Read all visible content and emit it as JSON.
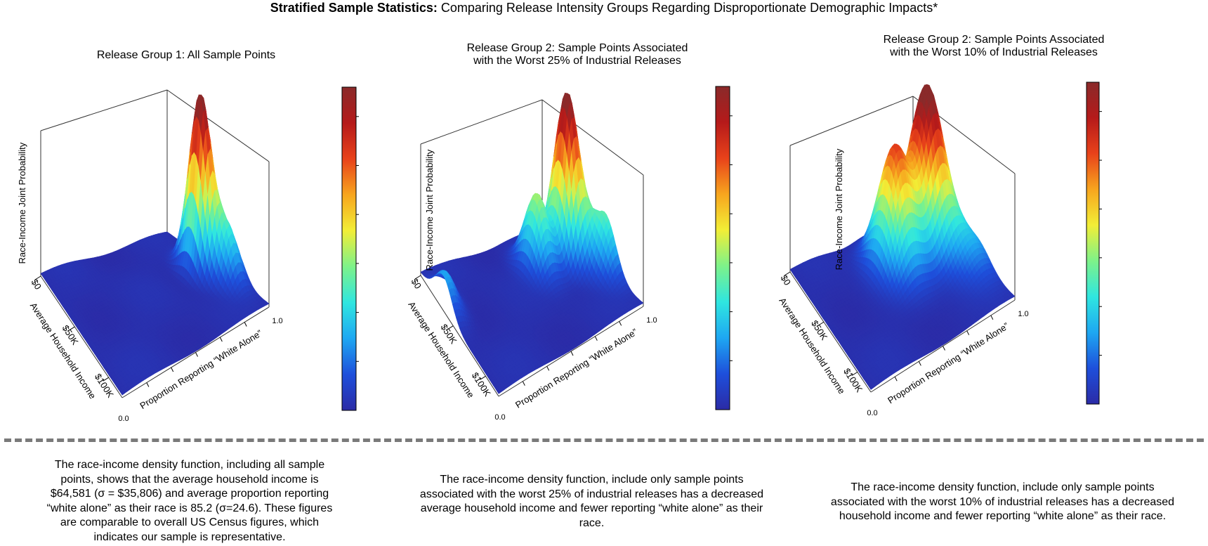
{
  "title": {
    "bold": "Stratified Sample Statistics:",
    "rest": " Comparing Release Intensity Groups Regarding Disproportionate Demographic Impacts*"
  },
  "colors": {
    "colormap": [
      "#2b2ba6",
      "#1e4fdb",
      "#1ea7f2",
      "#2fe6e0",
      "#7df28a",
      "#f2ee36",
      "#f7a51e",
      "#e8421a",
      "#b51a1a",
      "#8a2a2a"
    ],
    "axis": "#000000",
    "divider": "#7a7a7a"
  },
  "chart_data": [
    {
      "type": "surface3d",
      "title_lines": [
        "Release Group 1: All Sample Points"
      ],
      "x_axis_label": "Proportion Reporting “White Alone”",
      "x_ticks": [
        "0.0",
        "1.0"
      ],
      "y_axis_label": "Average Household Income",
      "y_ticks": [
        "$0",
        "$50K",
        "$100K"
      ],
      "z_axis_label": "Race-Income Joint Probability",
      "colorbar": true,
      "peaks": [
        {
          "whiteness": 0.9,
          "income_k": 55,
          "relative_height": 1.0
        },
        {
          "whiteness": 0.95,
          "income_k": 80,
          "relative_height": 0.3
        }
      ]
    },
    {
      "type": "surface3d",
      "title_lines": [
        "Release Group 2: Sample Points Associated",
        "with the Worst 25% of Industrial Releases"
      ],
      "x_axis_label": "Proportion Reporting “White Alone”",
      "x_ticks": [
        "0.0",
        "1.0"
      ],
      "y_axis_label": "Average Household Income",
      "y_ticks": [
        "$0",
        "$50K",
        "$100K"
      ],
      "z_axis_label": "Race-Income Joint Probability",
      "colorbar": true,
      "peaks": [
        {
          "whiteness": 0.9,
          "income_k": 45,
          "relative_height": 1.0
        },
        {
          "whiteness": 0.7,
          "income_k": 40,
          "relative_height": 0.45
        },
        {
          "whiteness": 1.0,
          "income_k": 75,
          "relative_height": 0.35
        },
        {
          "whiteness": 0.02,
          "income_k": 35,
          "relative_height": 0.2
        }
      ]
    },
    {
      "type": "surface3d",
      "title_lines": [
        "Release Group 2: Sample Points Associated",
        "with the Worst 10% of Industrial Releases"
      ],
      "x_axis_label": "Proportion Reporting “White Alone”",
      "x_ticks": [
        "0.0",
        "1.0"
      ],
      "y_axis_label": "Average Household Income",
      "y_ticks": [
        "$0",
        "$50K",
        "$100K"
      ],
      "z_axis_label": "Race-Income Joint Probability",
      "colorbar": true,
      "peaks": [
        {
          "whiteness": 0.85,
          "income_k": 40,
          "relative_height": 1.0
        },
        {
          "whiteness": 0.6,
          "income_k": 40,
          "relative_height": 0.72
        },
        {
          "whiteness": 0.95,
          "income_k": 75,
          "relative_height": 0.2
        }
      ]
    }
  ],
  "captions": [
    [
      "The race-income density function, including all sample",
      "points, shows that the average household income is",
      "$64,581 (σ = $35,806) and average proportion reporting",
      "“white alone” as their race is 85.2 (σ=24.6). These figures",
      "are comparable to overall US Census figures, which",
      "indicates our sample is representative."
    ],
    [
      "The race-income density function, include only sample points",
      "associated with the worst 25% of industrial releases has a decreased",
      "average household income and fewer reporting “white alone” as their",
      "race."
    ],
    [
      "The race-income density function, include only sample points",
      "associated with the worst 10% of industrial releases has a decreased",
      "household income and fewer reporting “white alone” as their race."
    ]
  ]
}
